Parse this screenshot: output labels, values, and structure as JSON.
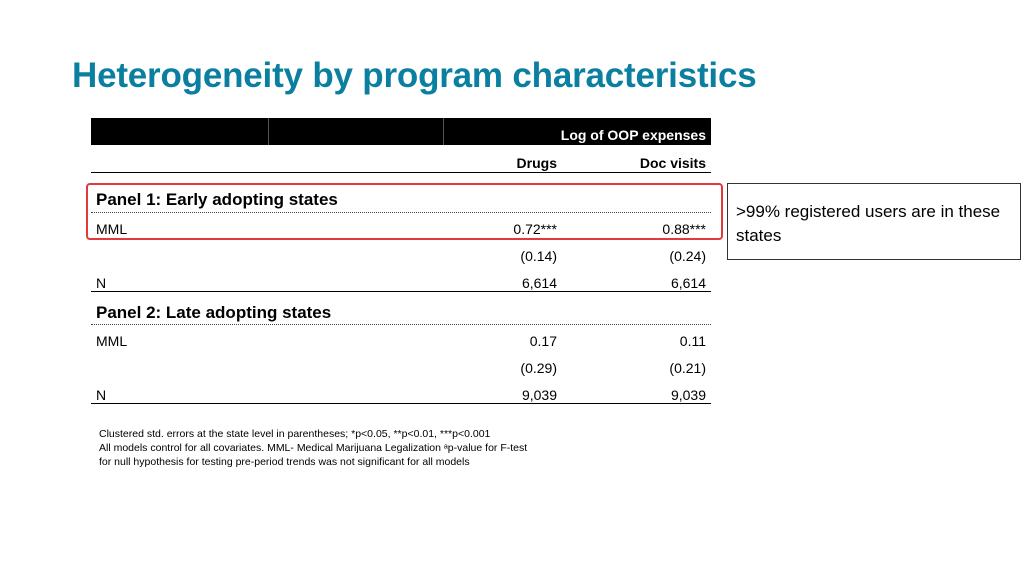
{
  "title": "Heterogeneity by program characteristics",
  "table": {
    "header_group": "Log of OOP expenses",
    "columns": [
      "Drugs",
      "Doc visits"
    ],
    "panels": [
      {
        "label": "Panel 1: Early adopting states",
        "mml_label": "MML",
        "mml": [
          "0.72***",
          "0.88***"
        ],
        "se": [
          "(0.14)",
          "(0.24)"
        ],
        "n_label": "N",
        "n": [
          "6,614",
          "6,614"
        ]
      },
      {
        "label": "Panel 2: Late adopting states",
        "mml_label": "MML",
        "mml": [
          "0.17",
          "0.11"
        ],
        "se": [
          "(0.29)",
          "(0.21)"
        ],
        "n_label": "N",
        "n": [
          "9,039",
          "9,039"
        ]
      }
    ]
  },
  "callout": ">99% registered users are in these states",
  "highlight_color": "#e23a3a",
  "title_color": "#0a7fa0",
  "footnotes": [
    "Clustered std. errors at the state level in parentheses;  *p<0.05, **p<0.01, ***p<0.001",
    "All models control for all covariates.  MML- Medical Marijuana Legalization ᵃp-value for F-test",
    "for null hypothesis for testing pre-period trends was not significant for all models"
  ]
}
